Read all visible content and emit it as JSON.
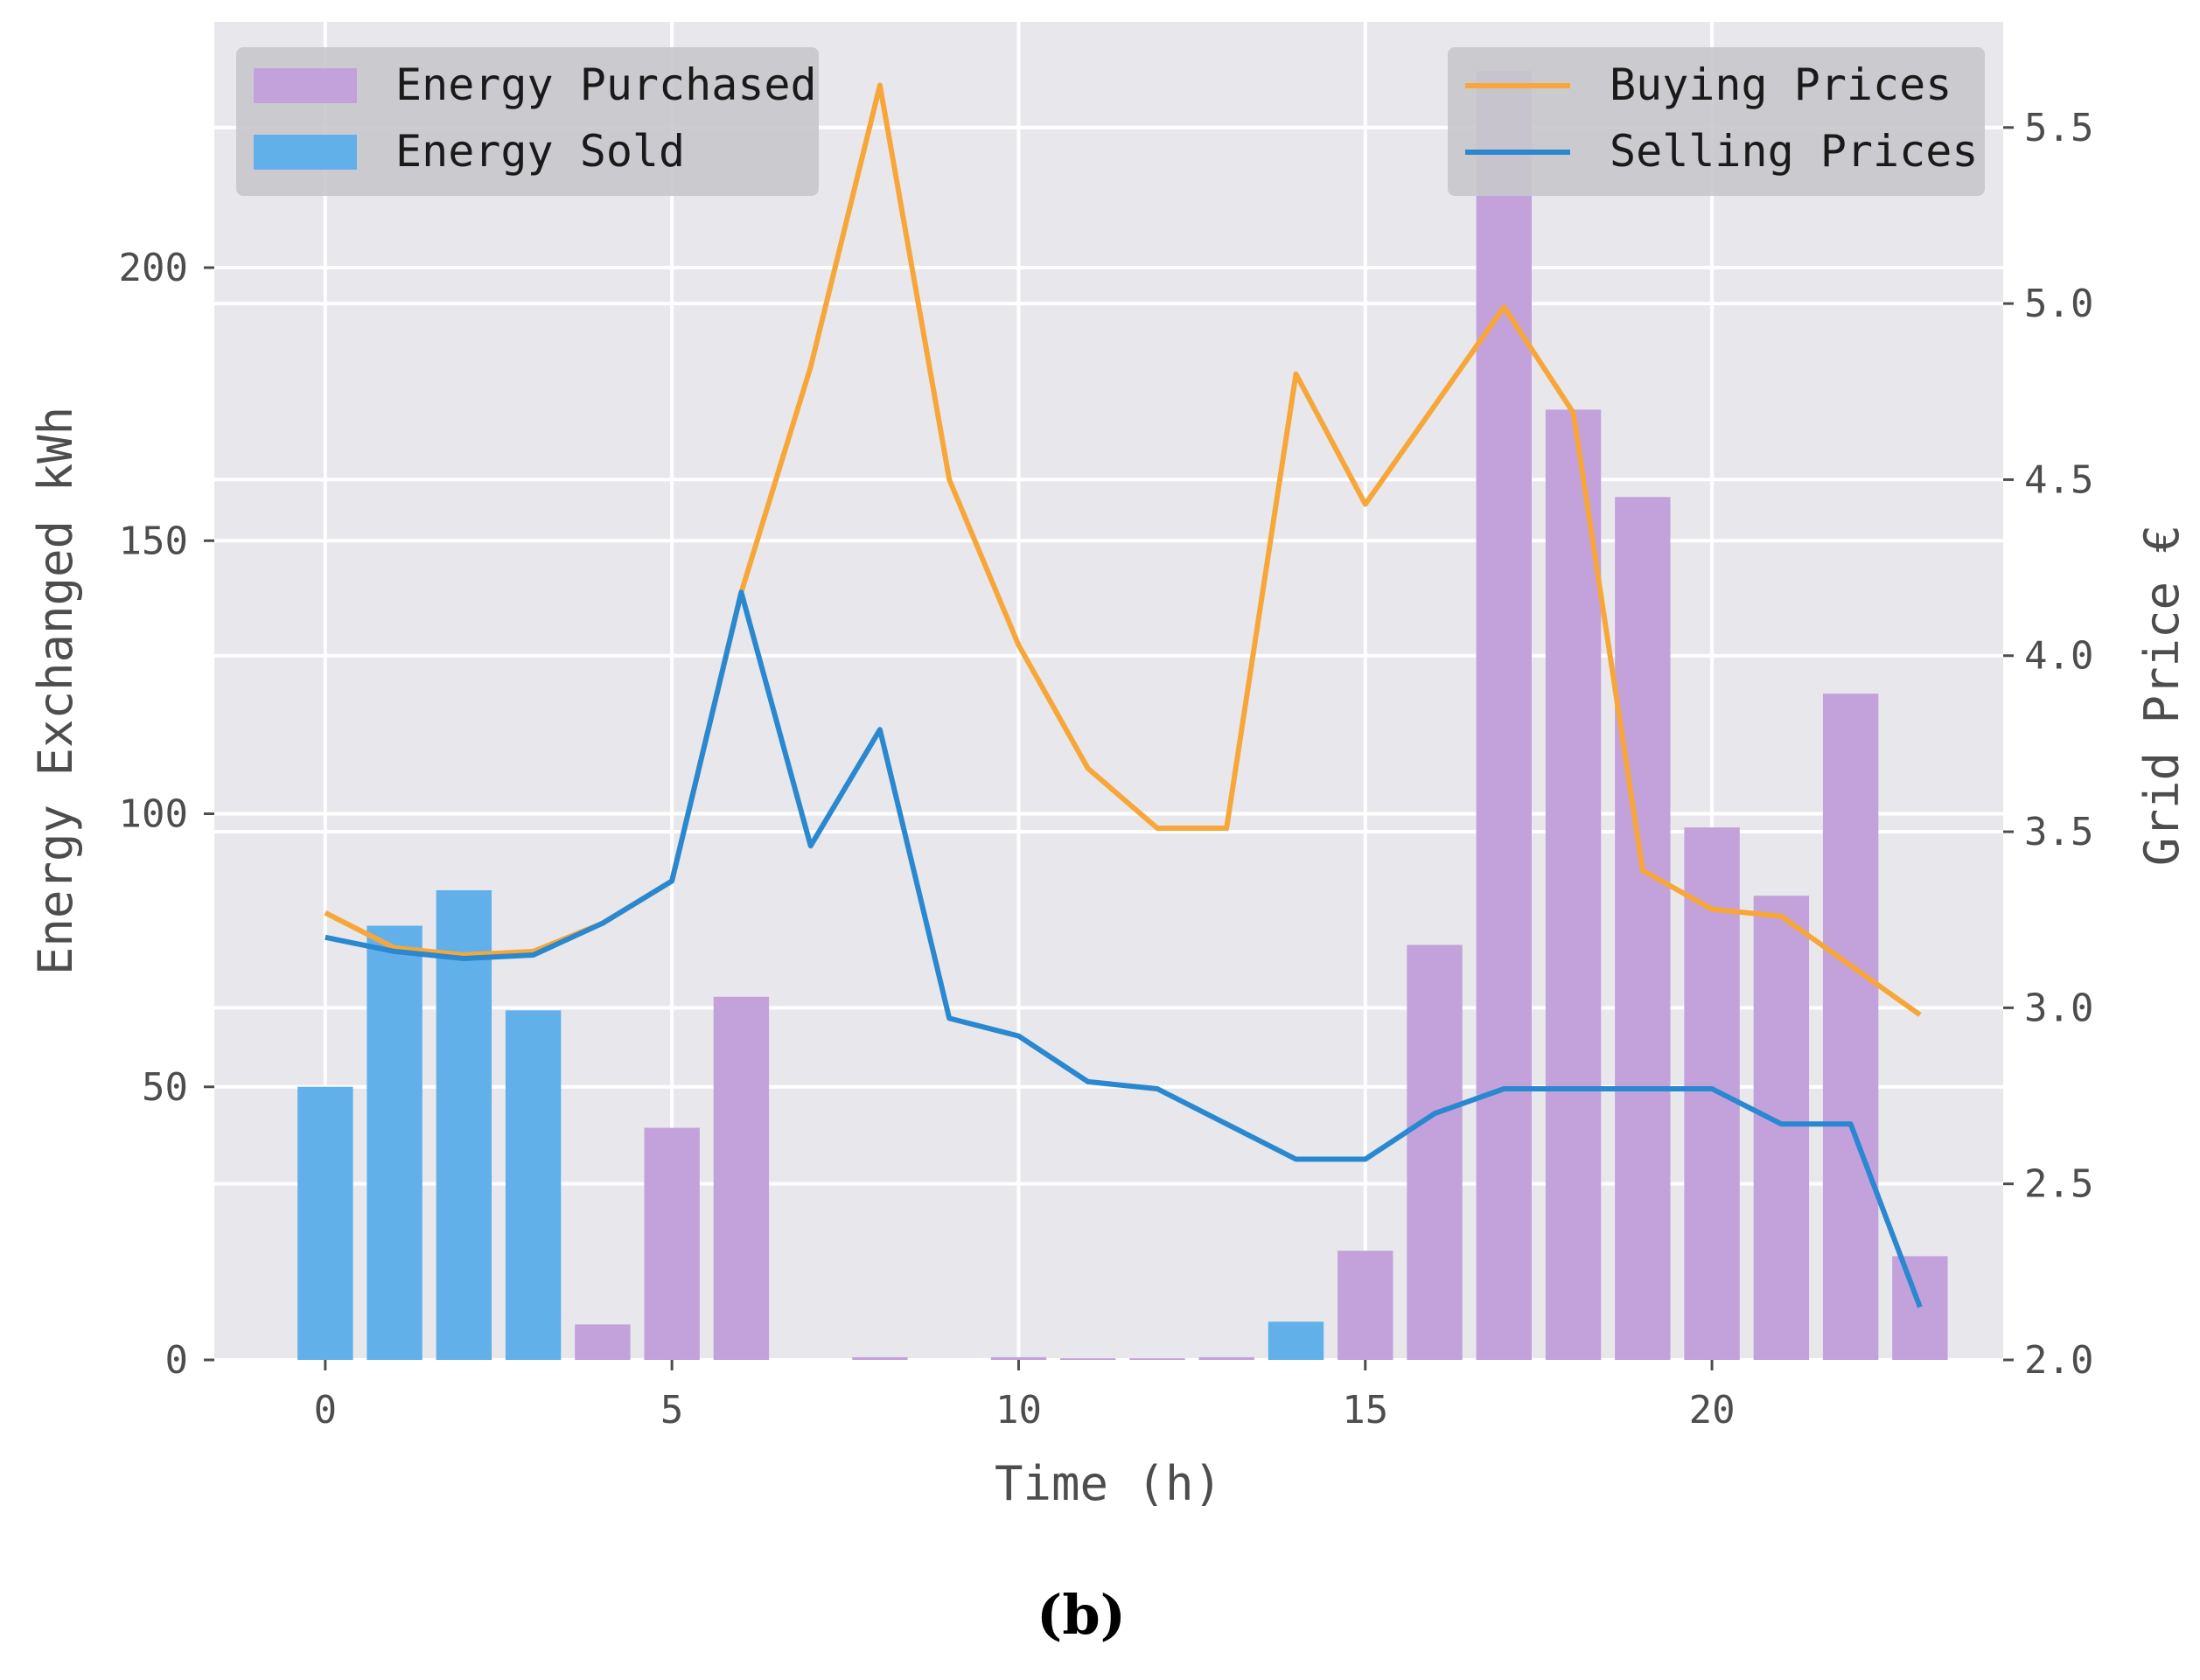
{
  "chart_data": {
    "type": "bar",
    "title": "",
    "caption": "(b)",
    "xlabel": "Time (h)",
    "ylabel": "Energy Exchanged kWh",
    "y2label": "Grid Price €",
    "xlim": [
      -1.6,
      24.2
    ],
    "ylim": [
      0,
      245
    ],
    "y2lim": [
      2.0,
      5.8
    ],
    "xticks": [
      0,
      5,
      10,
      15,
      20
    ],
    "yticks": [
      0,
      50,
      100,
      150,
      200
    ],
    "y2ticks": [
      2.0,
      2.5,
      3.0,
      3.5,
      4.0,
      4.5,
      5.0,
      5.5
    ],
    "y2tick_labels": [
      "2.0",
      "2.5",
      "3.0",
      "3.5",
      "4.0",
      "4.5",
      "5.0",
      "5.5"
    ],
    "hours": [
      0,
      1,
      2,
      3,
      4,
      5,
      6,
      7,
      8,
      9,
      10,
      11,
      12,
      13,
      14,
      15,
      16,
      17,
      18,
      19,
      20,
      21,
      22,
      23
    ],
    "bar_series": [
      {
        "name": "Energy Purchased",
        "color": "#c3a2dc",
        "values": [
          0,
          0,
          0,
          0,
          6.5,
          42.5,
          66.5,
          0,
          0.5,
          0,
          0.5,
          0.3,
          0.3,
          0.5,
          0,
          20,
          76,
          236,
          174,
          158,
          97.5,
          85,
          122,
          19
        ]
      },
      {
        "name": "Energy Sold",
        "color": "#62b0ea",
        "values": [
          50,
          79.5,
          86,
          64,
          0,
          0,
          0,
          0,
          0,
          0,
          0,
          0,
          0,
          0,
          7,
          0,
          0,
          0,
          0,
          0,
          0,
          0,
          0,
          0
        ]
      }
    ],
    "line_series": [
      {
        "name": "Buying Prices",
        "color": "#f7a73a",
        "values": [
          3.27,
          3.17,
          3.15,
          3.16,
          3.24,
          3.36,
          4.18,
          4.82,
          5.62,
          4.5,
          4.03,
          3.68,
          3.51,
          3.51,
          4.8,
          4.43,
          4.71,
          4.99,
          4.69,
          3.39,
          3.28,
          3.26,
          3.12,
          2.98
        ]
      },
      {
        "name": "Selling Prices",
        "color": "#2a88d0",
        "values": [
          3.2,
          3.16,
          3.14,
          3.15,
          3.24,
          3.36,
          4.18,
          3.46,
          3.79,
          2.97,
          2.92,
          2.79,
          2.77,
          2.67,
          2.57,
          2.57,
          2.7,
          2.77,
          2.77,
          2.77,
          2.77,
          2.67,
          2.67,
          2.15
        ]
      }
    ],
    "grid": true,
    "legend_left": "top-left",
    "legend_right": "top-right"
  }
}
